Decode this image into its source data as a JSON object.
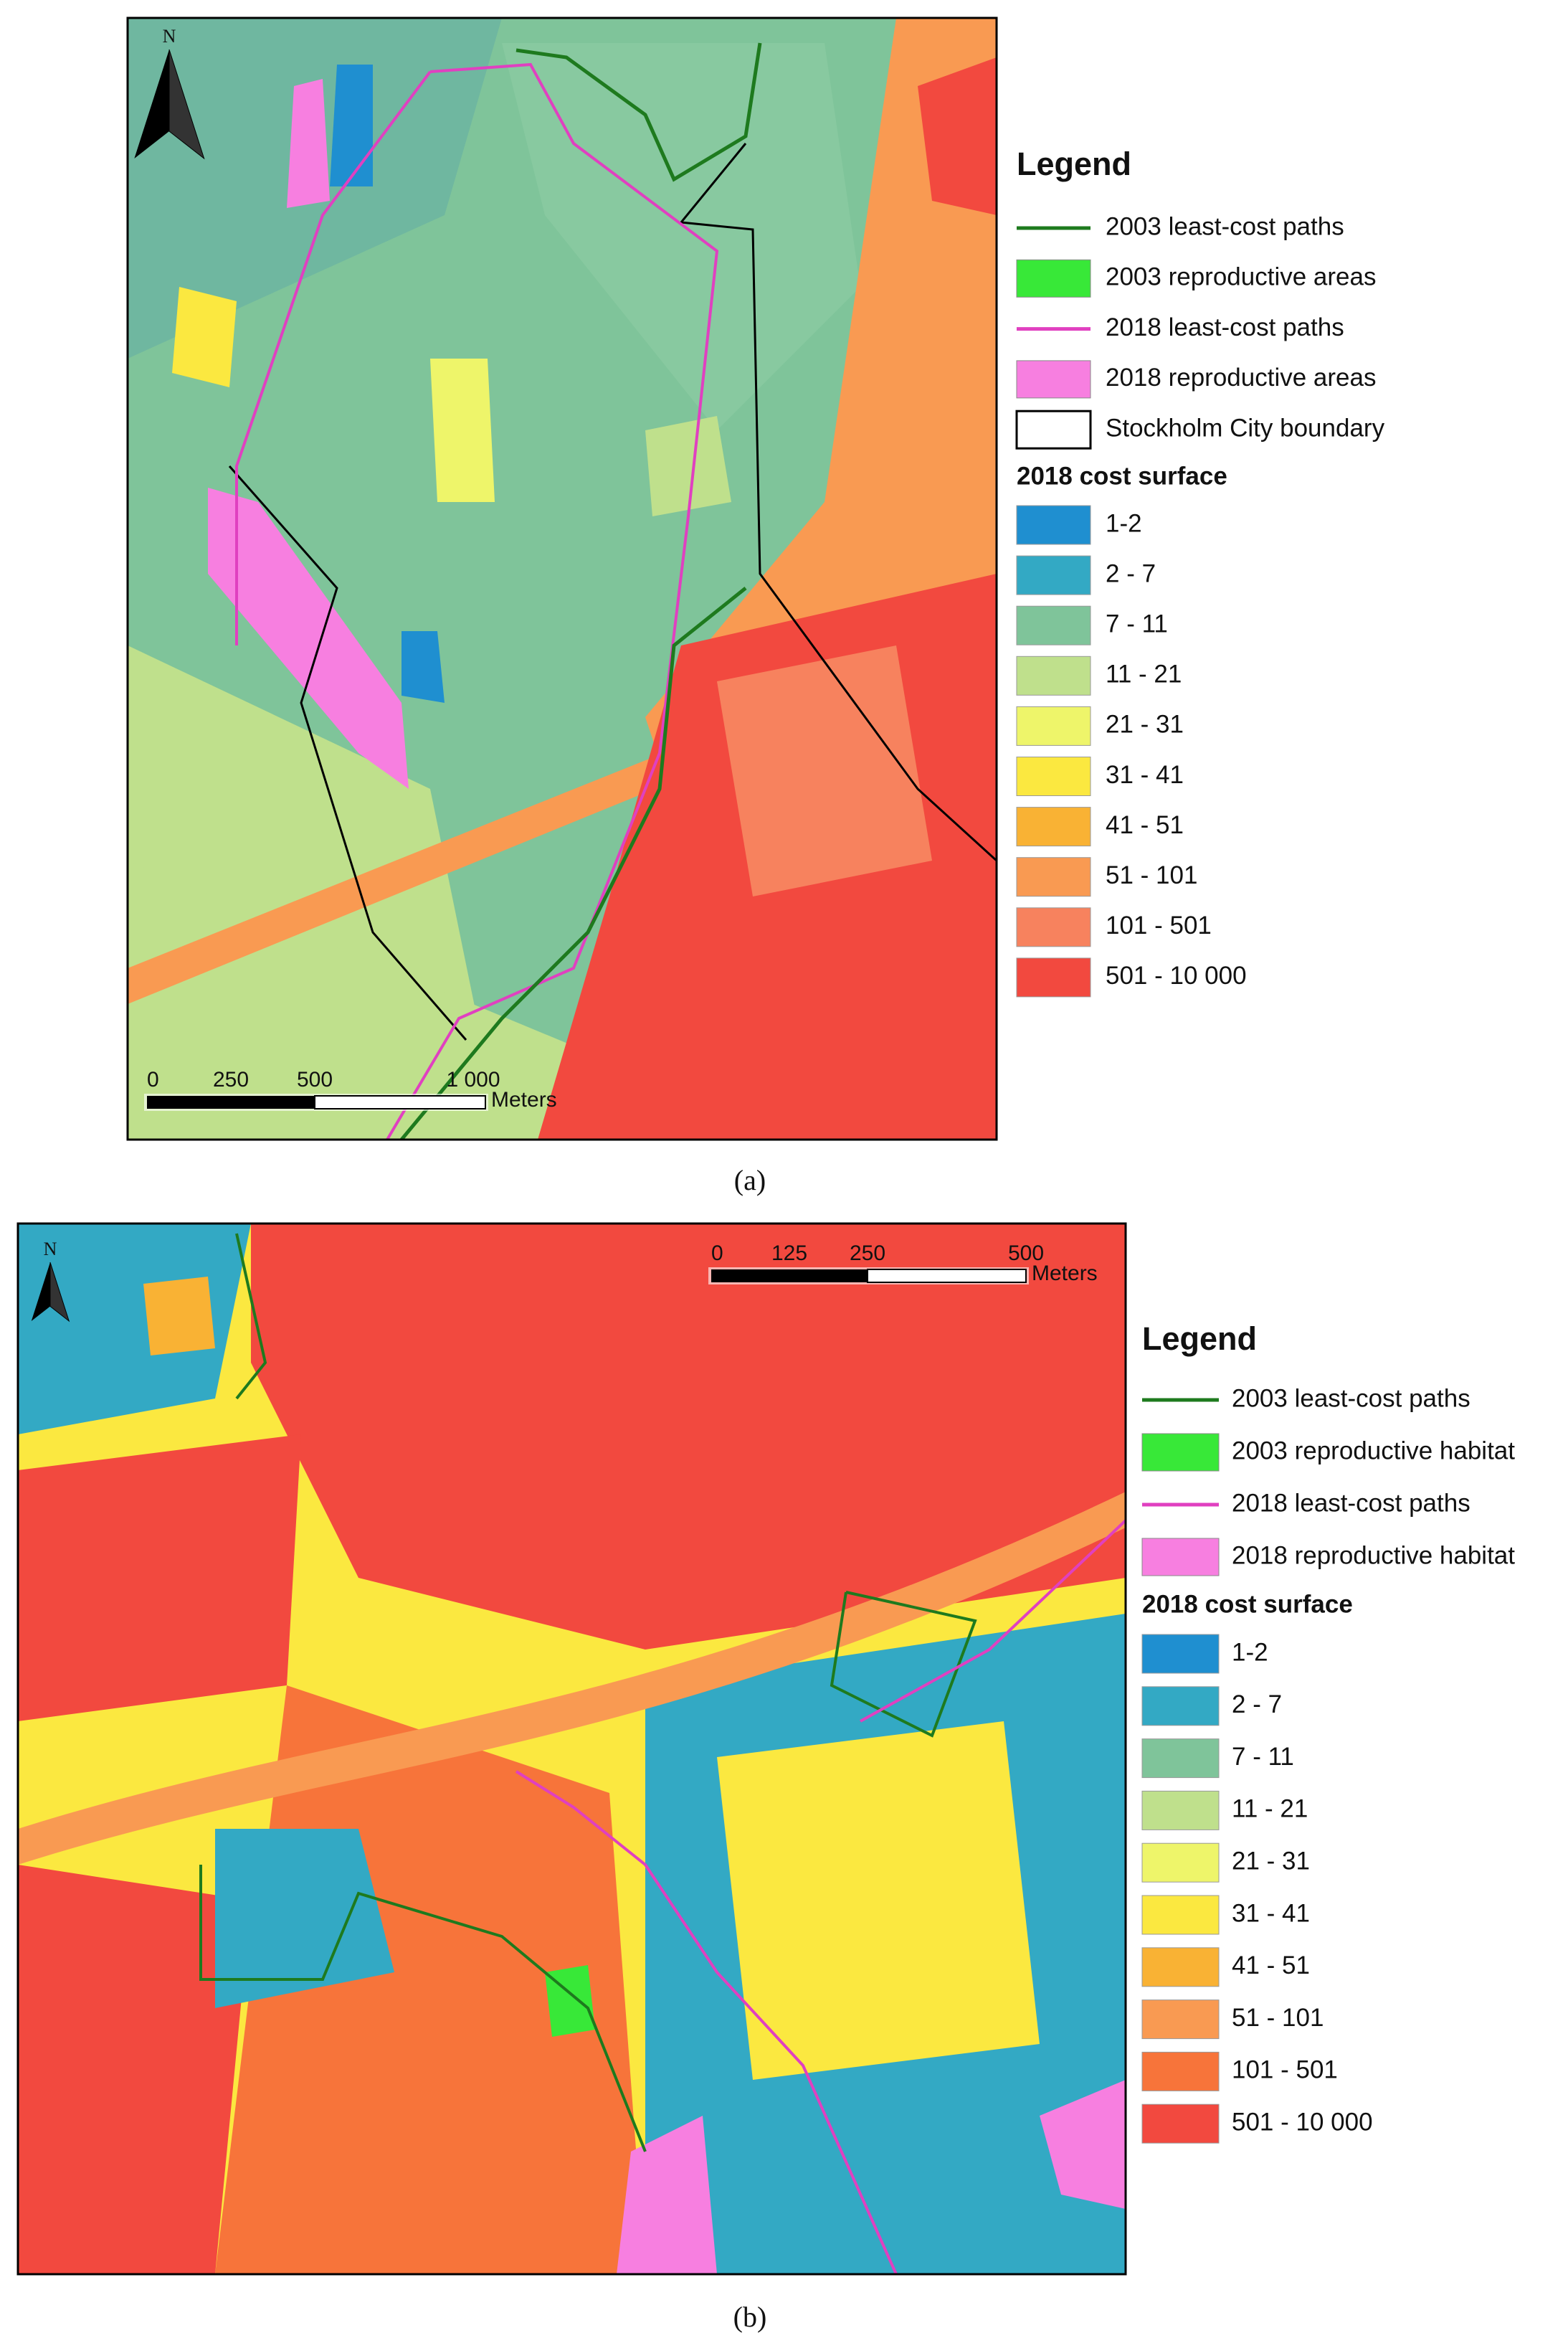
{
  "panels": [
    {
      "caption": "(a)",
      "north": "N",
      "scale_bar": {
        "ticks": [
          "0",
          "250",
          "500",
          "1 000"
        ],
        "unit": "Meters"
      },
      "legend": {
        "title": "Legend",
        "entries": [
          {
            "label": "2003 least-cost paths",
            "kind": "line",
            "color": "#1e7a1e"
          },
          {
            "label": "2003 reproductive areas",
            "kind": "patch",
            "color": "#38e838"
          },
          {
            "label": "2018 least-cost paths",
            "kind": "line",
            "color": "#e040c0"
          },
          {
            "label": "2018 reproductive areas",
            "kind": "patch",
            "color": "#f77fe0"
          },
          {
            "label": "Stockholm City boundary",
            "kind": "outline",
            "color": "#000000"
          }
        ],
        "cost_title": "2018 cost surface",
        "classes": [
          {
            "label": "1-2",
            "color": "#1f8fd0"
          },
          {
            "label": "2 - 7",
            "color": "#33a9c4"
          },
          {
            "label": "7 - 11",
            "color": "#7fc49a"
          },
          {
            "label": "11 - 21",
            "color": "#bfe08c"
          },
          {
            "label": "21 - 31",
            "color": "#eef56a"
          },
          {
            "label": "31 - 41",
            "color": "#fbe840"
          },
          {
            "label": "41 - 51",
            "color": "#f9b234"
          },
          {
            "label": "51 - 101",
            "color": "#f99a52"
          },
          {
            "label": "101 - 501",
            "color": "#f7825e"
          },
          {
            "label": "501 - 10 000",
            "color": "#f2493f"
          }
        ]
      }
    },
    {
      "caption": "(b)",
      "north": "N",
      "scale_bar": {
        "ticks": [
          "0",
          "125",
          "250",
          "500"
        ],
        "unit": "Meters"
      },
      "legend": {
        "title": "Legend",
        "entries": [
          {
            "label": "2003 least-cost paths",
            "kind": "line",
            "color": "#1e7a1e"
          },
          {
            "label": "2003 reproductive habitat",
            "kind": "patch",
            "color": "#38e838"
          },
          {
            "label": "2018 least-cost paths",
            "kind": "line",
            "color": "#e040c0"
          },
          {
            "label": "2018 reproductive habitat",
            "kind": "patch",
            "color": "#f77fe0"
          }
        ],
        "cost_title": "2018 cost surface",
        "classes": [
          {
            "label": "1-2",
            "color": "#1f8fd0"
          },
          {
            "label": "2 - 7",
            "color": "#33a9c4"
          },
          {
            "label": "7 - 11",
            "color": "#7fc49a"
          },
          {
            "label": "11 - 21",
            "color": "#bfe08c"
          },
          {
            "label": "21 - 31",
            "color": "#eef56a"
          },
          {
            "label": "31 - 41",
            "color": "#fbe840"
          },
          {
            "label": "41 - 51",
            "color": "#f9b234"
          },
          {
            "label": "51 - 101",
            "color": "#f99a52"
          },
          {
            "label": "101 - 501",
            "color": "#f7743a"
          },
          {
            "label": "501 - 10 000",
            "color": "#f2493f"
          }
        ]
      }
    }
  ]
}
